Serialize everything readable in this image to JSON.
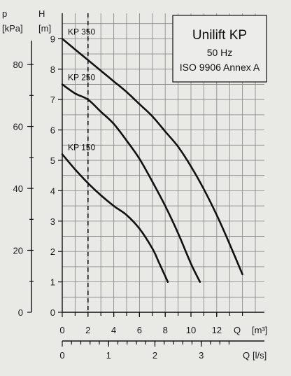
{
  "chart_data": {
    "type": "line",
    "legend": {
      "title": "Unilift KP",
      "line1": "50 Hz",
      "line2": "ISO 9906 Annex A"
    },
    "head_axis": {
      "label": "H",
      "unit": "[m]",
      "range": [
        0,
        9.5
      ],
      "ticks": [
        0,
        1,
        2,
        3,
        4,
        5,
        6,
        7,
        8,
        9
      ],
      "tick_labels": [
        "0",
        "1",
        "2",
        "3",
        "4",
        "5",
        "6",
        "7",
        "8",
        "9"
      ]
    },
    "pressure_axis": {
      "label": "p",
      "unit": "[kPa]",
      "ticks": [
        0,
        20,
        40,
        60,
        80
      ],
      "tick_labels": [
        "0",
        "20",
        "40",
        "60",
        "80"
      ]
    },
    "flow_axis_m3h": {
      "label": "Q",
      "unit": "[m³]",
      "range": [
        0,
        15
      ],
      "ticks": [
        0,
        2,
        4,
        6,
        8,
        10,
        12
      ],
      "tick_labels": [
        "0",
        "2",
        "4",
        "6",
        "8",
        "10",
        "12"
      ]
    },
    "flow_axis_ls": {
      "label": "Q",
      "unit": "[l/s]",
      "ticks": [
        0,
        1,
        2,
        3
      ],
      "tick_labels": [
        "0",
        "1",
        "2",
        "3"
      ]
    },
    "reference_line": {
      "x": 2
    },
    "series": [
      {
        "name": "KP 350",
        "x": [
          0,
          1,
          2,
          3,
          4,
          5,
          6,
          7,
          8,
          9,
          10,
          11,
          12,
          13,
          14
        ],
        "y": [
          9.0,
          8.65,
          8.3,
          7.95,
          7.6,
          7.25,
          6.85,
          6.45,
          5.95,
          5.45,
          4.8,
          4.05,
          3.2,
          2.25,
          1.25
        ]
      },
      {
        "name": "KP 250",
        "x": [
          0,
          1,
          2,
          3,
          4,
          5,
          6,
          7,
          8,
          9,
          10,
          10.7
        ],
        "y": [
          7.5,
          7.2,
          7.0,
          6.6,
          6.2,
          5.65,
          5.05,
          4.3,
          3.5,
          2.6,
          1.6,
          1.0
        ]
      },
      {
        "name": "KP 150",
        "x": [
          0,
          1,
          2,
          3,
          4,
          5,
          6,
          7,
          7.5,
          8.2
        ],
        "y": [
          5.2,
          4.7,
          4.25,
          3.85,
          3.5,
          3.2,
          2.75,
          2.1,
          1.65,
          1.0
        ]
      }
    ]
  }
}
